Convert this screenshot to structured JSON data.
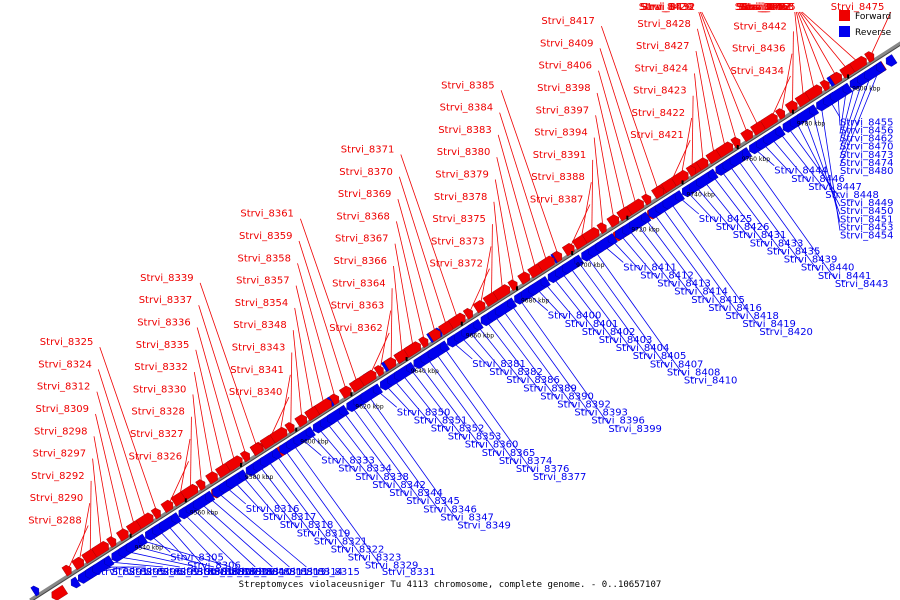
{
  "caption": "Streptomyces violaceusniger Tu 4113 chromosome, complete genome. - 0..10657107",
  "legend": [
    {
      "label": "Forward",
      "color": "#ee0000"
    },
    {
      "label": "Reverse",
      "color": "#0000ee"
    }
  ],
  "colors": {
    "forward": "#ee0000",
    "reverse": "#0000ee",
    "axis": "#888888"
  },
  "ticks": [
    "9540 kbp",
    "9560 kbp",
    "9580 kbp",
    "9600 kbp",
    "9620 kbp",
    "9640 kbp",
    "9660 kbp",
    "9680 kbp",
    "9700 kbp",
    "9720 kbp",
    "9740 kbp",
    "9760 kbp",
    "9780 kbp",
    "9800 kbp"
  ],
  "forward_genes": [
    "Strvi_8288",
    "Strvi_8290",
    "Strvi_8292",
    "Strvi_8297",
    "Strvi_8298",
    "Strvi_8309",
    "Strvi_8312",
    "Strvi_8324",
    "Strvi_8325",
    "Strvi_8326",
    "Strvi_8327",
    "Strvi_8328",
    "Strvi_8330",
    "Strvi_8332",
    "Strvi_8335",
    "Strvi_8336",
    "Strvi_8337",
    "Strvi_8339",
    "Strvi_8340",
    "Strvi_8341",
    "Strvi_8343",
    "Strvi_8348",
    "Strvi_8354",
    "Strvi_8357",
    "Strvi_8358",
    "Strvi_8359",
    "Strvi_8361",
    "Strvi_8362",
    "Strvi_8363",
    "Strvi_8364",
    "Strvi_8366",
    "Strvi_8367",
    "Strvi_8368",
    "Strvi_8369",
    "Strvi_8370",
    "Strvi_8371",
    "Strvi_8372",
    "Strvi_8373",
    "Strvi_8375",
    "Strvi_8378",
    "Strvi_8379",
    "Strvi_8380",
    "Strvi_8383",
    "Strvi_8384",
    "Strvi_8385",
    "Strvi_8387",
    "Strvi_8388",
    "Strvi_8391",
    "Strvi_8394",
    "Strvi_8397",
    "Strvi_8398",
    "Strvi_8406",
    "Strvi_8409",
    "Strvi_8417",
    "Strvi_8421",
    "Strvi_8422",
    "Strvi_8423",
    "Strvi_8424",
    "Strvi_8427",
    "Strvi_8428",
    "Strvi_8429",
    "Strvi_8430",
    "Strvi_8432",
    "Strvi_8434",
    "Strvi_8436",
    "Strvi_8442",
    "Strvi_8445",
    "Strvi_8452",
    "Strvi_8457",
    "Strvi_8461",
    "Strvi_8463",
    "Strvi_8465",
    "Strvi_8475"
  ],
  "reverse_genes": [
    "Strvi_8291",
    "Strvi_8295",
    "Strvi_8296",
    "Strvi_8299",
    "Strvi_8300",
    "Strvi_8301",
    "Strvi_8302",
    "Strvi_8303",
    "Strvi_8304",
    "Strvi_8305",
    "Strvi_8306",
    "Strvi_8307",
    "Strvi_8308",
    "Strvi_8310",
    "Strvi_8311",
    "Strvi_8313",
    "Strvi_8314",
    "Strvi_8315",
    "Strvi_8316",
    "Strvi_8317",
    "Strvi_8318",
    "Strvi_8319",
    "Strvi_8321",
    "Strvi_8322",
    "Strvi_8323",
    "Strvi_8329",
    "Strvi_8331",
    "Strvi_8333",
    "Strvi_8334",
    "Strvi_8338",
    "Strvi_8342",
    "Strvi_8344",
    "Strvi_8345",
    "Strvi_8346",
    "Strvi_8347",
    "Strvi_8349",
    "Strvi_8350",
    "Strvi_8351",
    "Strvi_8352",
    "Strvi_8353",
    "Strvi_8360",
    "Strvi_8365",
    "Strvi_8374",
    "Strvi_8376",
    "Strvi_8377",
    "Strvi_8381",
    "Strvi_8382",
    "Strvi_8386",
    "Strvi_8389",
    "Strvi_8390",
    "Strvi_8392",
    "Strvi_8393",
    "Strvi_8396",
    "Strvi_8399",
    "Strvi_8400",
    "Strvi_8401",
    "Strvi_8402",
    "Strvi_8403",
    "Strvi_8404",
    "Strvi_8405",
    "Strvi_8407",
    "Strvi_8408",
    "Strvi_8410",
    "Strvi_8411",
    "Strvi_8412",
    "Strvi_8413",
    "Strvi_8414",
    "Strvi_8415",
    "Strvi_8416",
    "Strvi_8418",
    "Strvi_8419",
    "Strvi_8420",
    "Strvi_8425",
    "Strvi_8426",
    "Strvi_8431",
    "Strvi_8433",
    "Strvi_8435",
    "Strvi_8439",
    "Strvi_8440",
    "Strvi_8441",
    "Strvi_8443",
    "Strvi_8444",
    "Strvi_8446",
    "Strvi_8447",
    "Strvi_8448",
    "Strvi_8449",
    "Strvi_8450",
    "Strvi_8451",
    "Strvi_8453",
    "Strvi_8454",
    "Strvi_8455",
    "Strvi_8456",
    "Strvi_8462",
    "Strvi_8470",
    "Strvi_8473",
    "Strvi_8474",
    "Strvi_8480"
  ]
}
